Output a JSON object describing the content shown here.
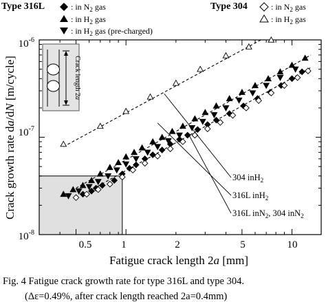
{
  "legend": {
    "type316L_title": "Type 316L",
    "type304_title": "Type 304",
    "items_316L": [
      {
        "marker": "diamond-filled",
        "label": ": in N₂ gas"
      },
      {
        "marker": "triangle-up-filled",
        "label": ": in H₂ gas"
      },
      {
        "marker": "triangle-down-filled",
        "label": ": in H₂ gas (pre-charged)"
      }
    ],
    "items_304": [
      {
        "marker": "diamond-open",
        "label": ": in N₂ gas"
      },
      {
        "marker": "triangle-up-open",
        "label": ": in H₂ gas"
      }
    ]
  },
  "inset_label": "Crack length 2a",
  "caption": {
    "line1": "Fig. 4    Fatigue crack growth rate for type 316L and type 304.",
    "line2": "(Δε=0.49%, after crack length reached 2a=0.4mm)"
  },
  "chart_data": {
    "type": "scatter",
    "x_scale": "log",
    "y_scale": "log",
    "xlabel": "Fatigue crack length  2a [mm]",
    "ylabel": "Crack growth rate  da/dN [m/cycle]",
    "xlim": [
      0.3,
      15
    ],
    "ylim": [
      1e-08,
      1e-06
    ],
    "x_ticks": [
      0.5,
      1,
      2,
      5,
      10
    ],
    "x_tick_labels": [
      "0.5",
      "1",
      "2",
      "5",
      "10"
    ],
    "y_ticks": [
      1e-08,
      1e-07,
      1e-06
    ],
    "y_tick_labels": [
      "10⁻⁸",
      "10⁻⁷",
      "10⁻⁶"
    ],
    "grid": false,
    "series": [
      {
        "name": "Type 316L in N₂ gas",
        "marker": "diamond-filled",
        "x": [
          0.55,
          0.62,
          0.66,
          0.72,
          0.85,
          0.95,
          1.05,
          1.15,
          1.3,
          1.45,
          1.65,
          1.85,
          2.1,
          2.35,
          2.7,
          3.1,
          3.5,
          4.2,
          5.1,
          6.2,
          7.4,
          8.6,
          10.0,
          11.5
        ],
        "y": [
          2.6e-08,
          2.8e-08,
          3e-08,
          3.2e-08,
          3.6e-08,
          4.2e-08,
          4.8e-08,
          5.2e-08,
          6e-08,
          6.6e-08,
          7.4e-08,
          8.5e-08,
          9.5e-08,
          1.05e-07,
          1.2e-07,
          1.35e-07,
          1.5e-07,
          1.75e-07,
          2.1e-07,
          2.5e-07,
          2.9e-07,
          3.4e-07,
          4e-07,
          4.7e-07
        ]
      },
      {
        "name": "Type 316L in H₂ gas",
        "marker": "triangle-up-filled",
        "x": [
          0.42,
          0.48,
          0.55,
          0.62,
          0.7,
          0.8,
          0.9,
          1.0,
          1.12,
          1.25,
          1.45,
          1.65,
          1.9,
          2.2,
          2.6,
          3.0,
          3.5,
          4.2,
          5.0,
          6.0,
          7.2,
          8.5,
          10.0,
          12.0
        ],
        "y": [
          2.6e-08,
          2.9e-08,
          3.2e-08,
          3.6e-08,
          4.2e-08,
          4.9e-08,
          5.5e-08,
          6.3e-08,
          7e-08,
          7.8e-08,
          9e-08,
          1e-07,
          1.15e-07,
          1.3e-07,
          1.55e-07,
          1.8e-07,
          2.1e-07,
          2.5e-07,
          2.9e-07,
          3.4e-07,
          4e-07,
          4.7e-07,
          5.5e-07,
          6.5e-07
        ]
      },
      {
        "name": "Type 316L in H₂ gas (pre-charged)",
        "marker": "triangle-down-filled",
        "x": [
          0.45,
          0.52,
          0.6,
          0.68,
          0.78,
          0.88,
          1.0,
          1.15,
          1.35,
          1.55,
          1.8,
          2.1,
          2.5,
          2.9,
          3.4,
          4.0,
          4.8,
          5.8,
          7.0,
          8.5,
          10.5
        ],
        "y": [
          2.5e-08,
          2.8e-08,
          3.1e-08,
          3.5e-08,
          4e-08,
          4.6e-08,
          5.3e-08,
          6e-08,
          7e-08,
          8e-08,
          9.2e-08,
          1.05e-07,
          1.25e-07,
          1.45e-07,
          1.7e-07,
          2e-07,
          2.4e-07,
          2.85e-07,
          3.4e-07,
          4.1e-07,
          5e-07
        ]
      },
      {
        "name": "Type 304 in N₂ gas",
        "marker": "diamond-open",
        "x": [
          0.5,
          0.58,
          0.68,
          0.8,
          0.95,
          1.1,
          1.3,
          1.55,
          1.85,
          2.2,
          2.6,
          3.1,
          3.7,
          4.4,
          5.3,
          6.3,
          7.5,
          9.0,
          10.8,
          12.5
        ],
        "y": [
          2.4e-08,
          2.6e-08,
          2.9e-08,
          3.3e-08,
          3.9e-08,
          4.6e-08,
          5.4e-08,
          6.4e-08,
          7.6e-08,
          9e-08,
          1.05e-07,
          1.22e-07,
          1.42e-07,
          1.68e-07,
          2e-07,
          2.38e-07,
          2.85e-07,
          3.4e-07,
          4.1e-07,
          4.8e-07
        ]
      },
      {
        "name": "Type 304 in H₂ gas",
        "marker": "triangle-up-open",
        "x": [
          0.42,
          0.7,
          1.0,
          1.4,
          2.0,
          2.8,
          4.0,
          5.5,
          7.5
        ],
        "y": [
          8.5e-08,
          1.3e-07,
          1.85e-07,
          2.6e-07,
          3.6e-07,
          5e-07,
          6.9e-07,
          8.5e-07,
          1e-06
        ]
      }
    ],
    "fit_lines": [
      {
        "x": [
          0.42,
          6.5
        ],
        "y": [
          8e-08,
          1e-06
        ]
      },
      {
        "x": [
          0.5,
          13.0
        ],
        "y": [
          3e-08,
          7e-07
        ]
      },
      {
        "x": [
          0.6,
          13.0
        ],
        "y": [
          2.8e-08,
          5.2e-07
        ]
      }
    ],
    "annotations": [
      {
        "text": "304 inH₂",
        "points_to": [
          1.7,
          2.8e-07
        ]
      },
      {
        "text": "316L inH₂",
        "points_to": [
          1.55,
          1.4e-07
        ]
      },
      {
        "text": "316L inN₂, 304 inN₂",
        "points_to": [
          2.4,
          1.05e-07
        ]
      }
    ],
    "shaded_region": {
      "x": [
        0.3,
        0.95
      ],
      "y": [
        1e-08,
        4e-08
      ],
      "color": "#e0e0e0"
    }
  }
}
